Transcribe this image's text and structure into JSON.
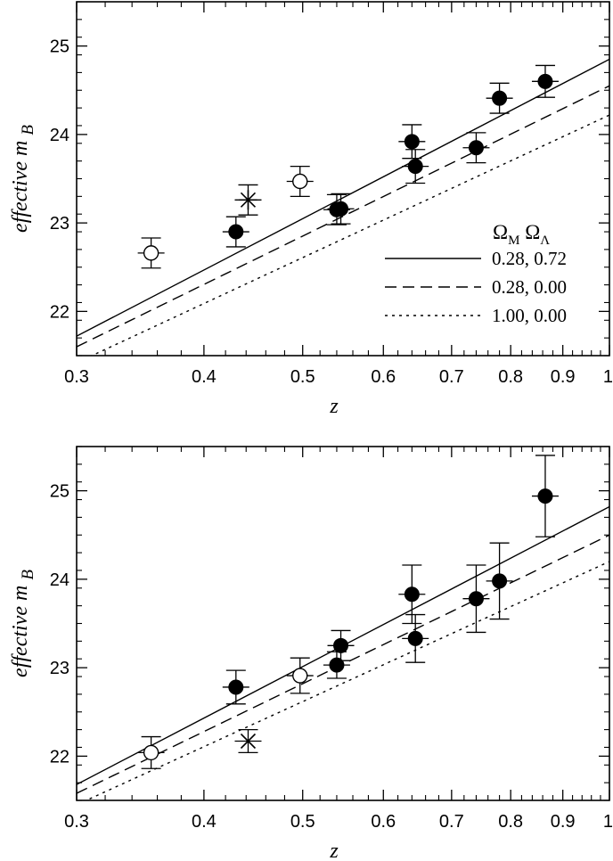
{
  "chart_data": [
    {
      "type": "scatter",
      "panel": "top",
      "title": "",
      "xlabel": "z",
      "ylabel_main": "effective m",
      "ylabel_sub": "B",
      "xscale": "log",
      "xlim": [
        0.3,
        1.0
      ],
      "ylim": [
        21.5,
        25.5
      ],
      "xticks": [
        0.3,
        0.4,
        0.5,
        0.6,
        0.7,
        0.8,
        0.9,
        1.0
      ],
      "xtick_labels": [
        "0.3",
        "0.4",
        "0.5",
        "0.6",
        "0.7",
        "0.8",
        "0.9",
        "1"
      ],
      "yticks": [
        22,
        23,
        24,
        25
      ],
      "ytick_labels": [
        "22",
        "23",
        "24",
        "25"
      ],
      "legend": {
        "position": "lower-right",
        "header_m": "Ω",
        "header_m_sub": "M",
        "header_l": "Ω",
        "header_l_sub": "Λ",
        "entries": [
          {
            "label": "0.28, 0.72",
            "style": "solid"
          },
          {
            "label": "0.28, 0.00",
            "style": "dashed"
          },
          {
            "label": "1.00, 0.00",
            "style": "dotted"
          }
        ]
      },
      "models": [
        {
          "name": "0.28, 0.72",
          "style": "solid",
          "y_at_03": 21.72,
          "y_at_1": 24.85
        },
        {
          "name": "0.28, 0.00",
          "style": "dashed",
          "y_at_03": 21.6,
          "y_at_1": 24.55
        },
        {
          "name": "1.00, 0.00",
          "style": "dotted",
          "y_at_03": 21.42,
          "y_at_1": 24.22
        }
      ],
      "points": [
        {
          "z": 0.355,
          "m": 22.66,
          "err": 0.17,
          "marker": "open-circle"
        },
        {
          "z": 0.43,
          "m": 22.9,
          "err": 0.17,
          "marker": "filled-circle"
        },
        {
          "z": 0.442,
          "m": 23.26,
          "err": 0.17,
          "marker": "asterisk"
        },
        {
          "z": 0.497,
          "m": 23.47,
          "err": 0.17,
          "marker": "open-circle"
        },
        {
          "z": 0.54,
          "m": 23.15,
          "err": 0.17,
          "marker": "filled-circle"
        },
        {
          "z": 0.545,
          "m": 23.16,
          "err": 0.17,
          "marker": "filled-circle"
        },
        {
          "z": 0.64,
          "m": 23.92,
          "err": 0.19,
          "marker": "filled-circle"
        },
        {
          "z": 0.645,
          "m": 23.64,
          "err": 0.19,
          "marker": "filled-circle"
        },
        {
          "z": 0.74,
          "m": 23.85,
          "err": 0.17,
          "marker": "filled-circle"
        },
        {
          "z": 0.78,
          "m": 24.41,
          "err": 0.17,
          "marker": "filled-circle"
        },
        {
          "z": 0.865,
          "m": 24.6,
          "err": 0.18,
          "marker": "filled-circle"
        }
      ]
    },
    {
      "type": "scatter",
      "panel": "bottom",
      "title": "",
      "xlabel": "z",
      "ylabel_main": "effective m",
      "ylabel_sub": "B",
      "xscale": "log",
      "xlim": [
        0.3,
        1.0
      ],
      "ylim": [
        21.5,
        25.5
      ],
      "xticks": [
        0.3,
        0.4,
        0.5,
        0.6,
        0.7,
        0.8,
        0.9,
        1.0
      ],
      "xtick_labels": [
        "0.3",
        "0.4",
        "0.5",
        "0.6",
        "0.7",
        "0.8",
        "0.9",
        "1"
      ],
      "yticks": [
        22,
        23,
        24,
        25
      ],
      "ytick_labels": [
        "22",
        "23",
        "24",
        "25"
      ],
      "models": [
        {
          "name": "0.28, 0.72",
          "style": "solid",
          "y_at_03": 21.68,
          "y_at_1": 24.82
        },
        {
          "name": "0.28, 0.00",
          "style": "dashed",
          "y_at_03": 21.58,
          "y_at_1": 24.5
        },
        {
          "name": "1.00, 0.00",
          "style": "dotted",
          "y_at_03": 21.45,
          "y_at_1": 24.2
        }
      ],
      "points": [
        {
          "z": 0.355,
          "m": 22.04,
          "err": 0.18,
          "marker": "open-circle"
        },
        {
          "z": 0.43,
          "m": 22.78,
          "err": 0.19,
          "marker": "filled-circle"
        },
        {
          "z": 0.442,
          "m": 22.17,
          "err": 0.13,
          "marker": "cross"
        },
        {
          "z": 0.497,
          "m": 22.91,
          "err": 0.2,
          "marker": "open-circle"
        },
        {
          "z": 0.54,
          "m": 23.03,
          "err": 0.15,
          "marker": "filled-circle"
        },
        {
          "z": 0.545,
          "m": 23.25,
          "err": 0.17,
          "marker": "filled-circle"
        },
        {
          "z": 0.64,
          "m": 23.83,
          "err": 0.33,
          "marker": "filled-circle"
        },
        {
          "z": 0.645,
          "m": 23.33,
          "err": 0.27,
          "marker": "filled-circle"
        },
        {
          "z": 0.74,
          "m": 23.78,
          "err": 0.38,
          "marker": "filled-circle"
        },
        {
          "z": 0.78,
          "m": 23.98,
          "err": 0.43,
          "marker": "filled-circle"
        },
        {
          "z": 0.865,
          "m": 24.94,
          "err": 0.46,
          "marker": "filled-circle"
        }
      ]
    }
  ]
}
